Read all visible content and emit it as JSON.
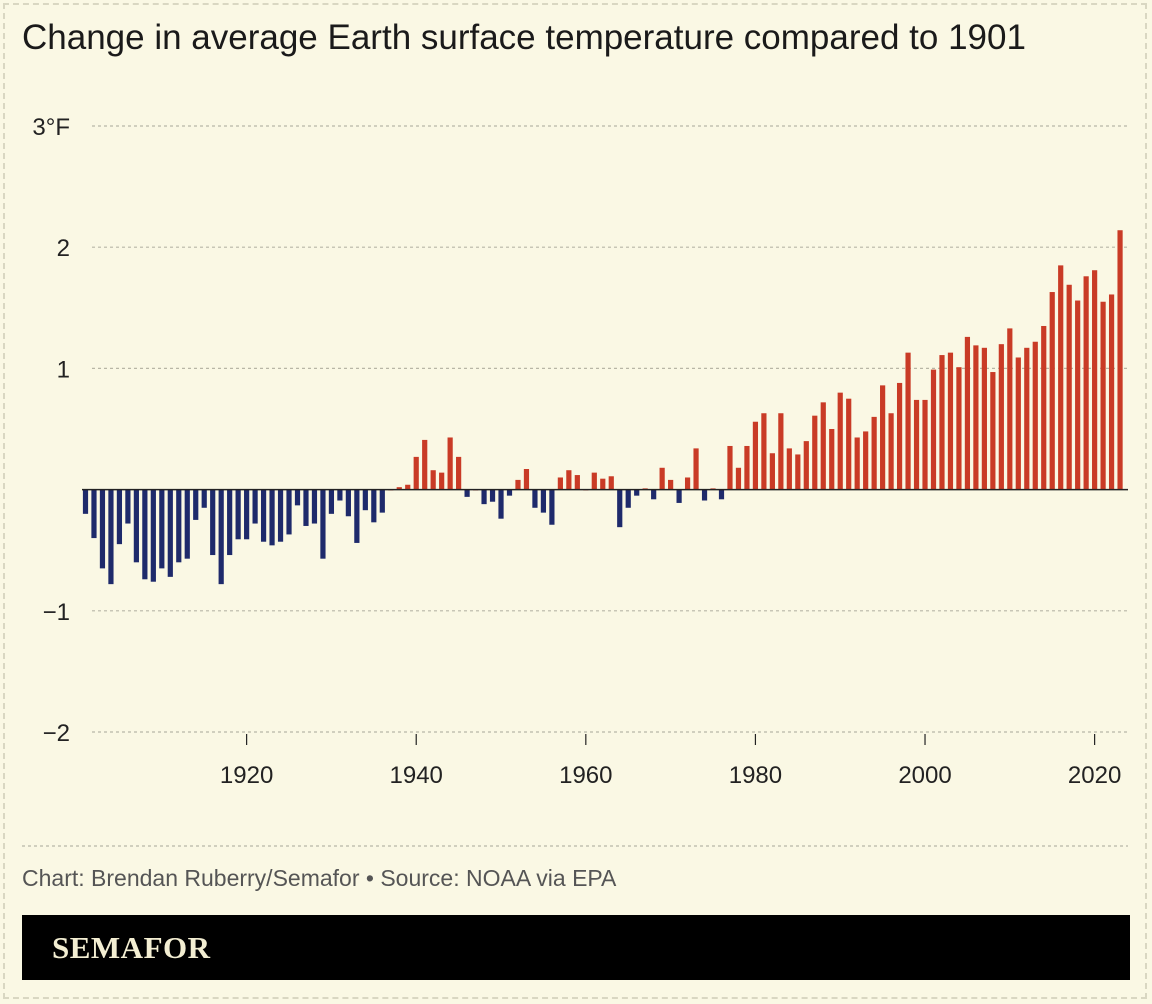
{
  "chart_data": {
    "type": "bar",
    "title": "Change in average Earth surface temperature compared to 1901",
    "ylabel": "°F",
    "ylim": [
      -2,
      3
    ],
    "yticks": [
      {
        "value": 3,
        "label": "3°F"
      },
      {
        "value": 2,
        "label": "2"
      },
      {
        "value": 1,
        "label": "1"
      },
      {
        "value": -1,
        "label": "−1"
      },
      {
        "value": -2,
        "label": "−2"
      }
    ],
    "xticks": [
      1920,
      1940,
      1960,
      1980,
      2000,
      2020
    ],
    "first_year": 1901,
    "years": [
      1901,
      1902,
      1903,
      1904,
      1905,
      1906,
      1907,
      1908,
      1909,
      1910,
      1911,
      1912,
      1913,
      1914,
      1915,
      1916,
      1917,
      1918,
      1919,
      1920,
      1921,
      1922,
      1923,
      1924,
      1925,
      1926,
      1927,
      1928,
      1929,
      1930,
      1931,
      1932,
      1933,
      1934,
      1935,
      1936,
      1937,
      1938,
      1939,
      1940,
      1941,
      1942,
      1943,
      1944,
      1945,
      1946,
      1947,
      1948,
      1949,
      1950,
      1951,
      1952,
      1953,
      1954,
      1955,
      1956,
      1957,
      1958,
      1959,
      1960,
      1961,
      1962,
      1963,
      1964,
      1965,
      1966,
      1967,
      1968,
      1969,
      1970,
      1971,
      1972,
      1973,
      1974,
      1975,
      1976,
      1977,
      1978,
      1979,
      1980,
      1981,
      1982,
      1983,
      1984,
      1985,
      1986,
      1987,
      1988,
      1989,
      1990,
      1991,
      1992,
      1993,
      1994,
      1995,
      1996,
      1997,
      1998,
      1999,
      2000,
      2001,
      2002,
      2003,
      2004,
      2005,
      2006,
      2007,
      2008,
      2009,
      2010,
      2011,
      2012,
      2013,
      2014,
      2015,
      2016,
      2017,
      2018,
      2019,
      2020,
      2021,
      2022,
      2023
    ],
    "values": [
      -0.2,
      -0.4,
      -0.65,
      -0.78,
      -0.45,
      -0.28,
      -0.6,
      -0.74,
      -0.76,
      -0.65,
      -0.72,
      -0.6,
      -0.57,
      -0.25,
      -0.15,
      -0.54,
      -0.78,
      -0.54,
      -0.41,
      -0.41,
      -0.28,
      -0.43,
      -0.46,
      -0.43,
      -0.37,
      -0.13,
      -0.3,
      -0.28,
      -0.57,
      -0.2,
      -0.09,
      -0.22,
      -0.44,
      -0.17,
      -0.27,
      -0.19,
      0.0,
      0.02,
      0.04,
      0.27,
      0.41,
      0.16,
      0.14,
      0.43,
      0.27,
      -0.06,
      0.0,
      -0.12,
      -0.1,
      -0.24,
      -0.05,
      0.08,
      0.17,
      -0.15,
      -0.19,
      -0.29,
      0.1,
      0.16,
      0.12,
      0.0,
      0.14,
      0.09,
      0.11,
      -0.31,
      -0.15,
      -0.05,
      0.01,
      -0.08,
      0.18,
      0.08,
      -0.11,
      0.1,
      0.34,
      -0.09,
      0.01,
      -0.08,
      0.36,
      0.18,
      0.36,
      0.56,
      0.63,
      0.3,
      0.63,
      0.34,
      0.29,
      0.4,
      0.61,
      0.72,
      0.5,
      0.8,
      0.75,
      0.43,
      0.48,
      0.6,
      0.86,
      0.63,
      0.88,
      1.13,
      0.74,
      0.74,
      0.99,
      1.11,
      1.13,
      1.01,
      1.26,
      1.19,
      1.17,
      0.97,
      1.2,
      1.33,
      1.09,
      1.17,
      1.22,
      1.35,
      1.63,
      1.85,
      1.69,
      1.56,
      1.76,
      1.81,
      1.55,
      1.61,
      2.14
    ],
    "colors": {
      "positive": "#c93b26",
      "negative": "#1e2a6b"
    }
  },
  "credit": "Chart: Brendan Ruberry/Semafor • Source: NOAA via EPA",
  "brand": "SEMAFOR",
  "colors": {
    "background": "#faf8e4",
    "grid": "#b8b6a6",
    "zero_line": "#222222",
    "brand_bar": "#000000",
    "brand_text": "#f3eed2"
  }
}
